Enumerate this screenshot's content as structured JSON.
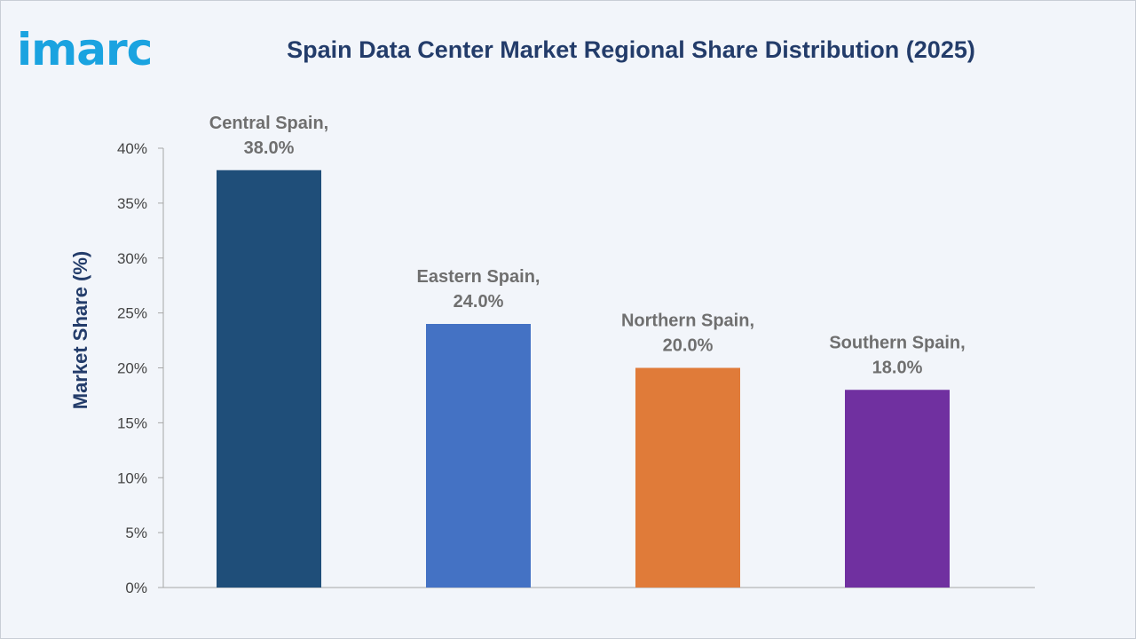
{
  "header": {
    "logo_text": "imarc",
    "title": "Spain Data Center Market Regional Share Distribution (2025)"
  },
  "colors": {
    "logo": "#1aa3e0",
    "title": "#233c6a"
  },
  "chart_data": {
    "type": "bar",
    "title": "Spain Data Center Market Regional Share Distribution (2025)",
    "xlabel": "",
    "ylabel": "Market Share (%)",
    "ylim": [
      0,
      40
    ],
    "y_ticks": [
      0,
      5,
      10,
      15,
      20,
      25,
      30,
      35,
      40
    ],
    "y_tick_labels": [
      "0%",
      "5%",
      "10%",
      "15%",
      "20%",
      "25%",
      "30%",
      "35%",
      "40%"
    ],
    "grid": false,
    "legend": "none",
    "categories": [
      "Central Spain",
      "Eastern Spain",
      "Northern Spain",
      "Southern Spain"
    ],
    "values": [
      38.0,
      24.0,
      20.0,
      18.0
    ],
    "data_labels": [
      [
        "Central Spain,",
        "38.0%"
      ],
      [
        "Eastern Spain,",
        "24.0%"
      ],
      [
        "Northern Spain,",
        "20.0%"
      ],
      [
        "Southern Spain,",
        "18.0%"
      ]
    ],
    "bar_colors": [
      "#1f4e79",
      "#4472c4",
      "#e07b39",
      "#7030a0"
    ]
  }
}
